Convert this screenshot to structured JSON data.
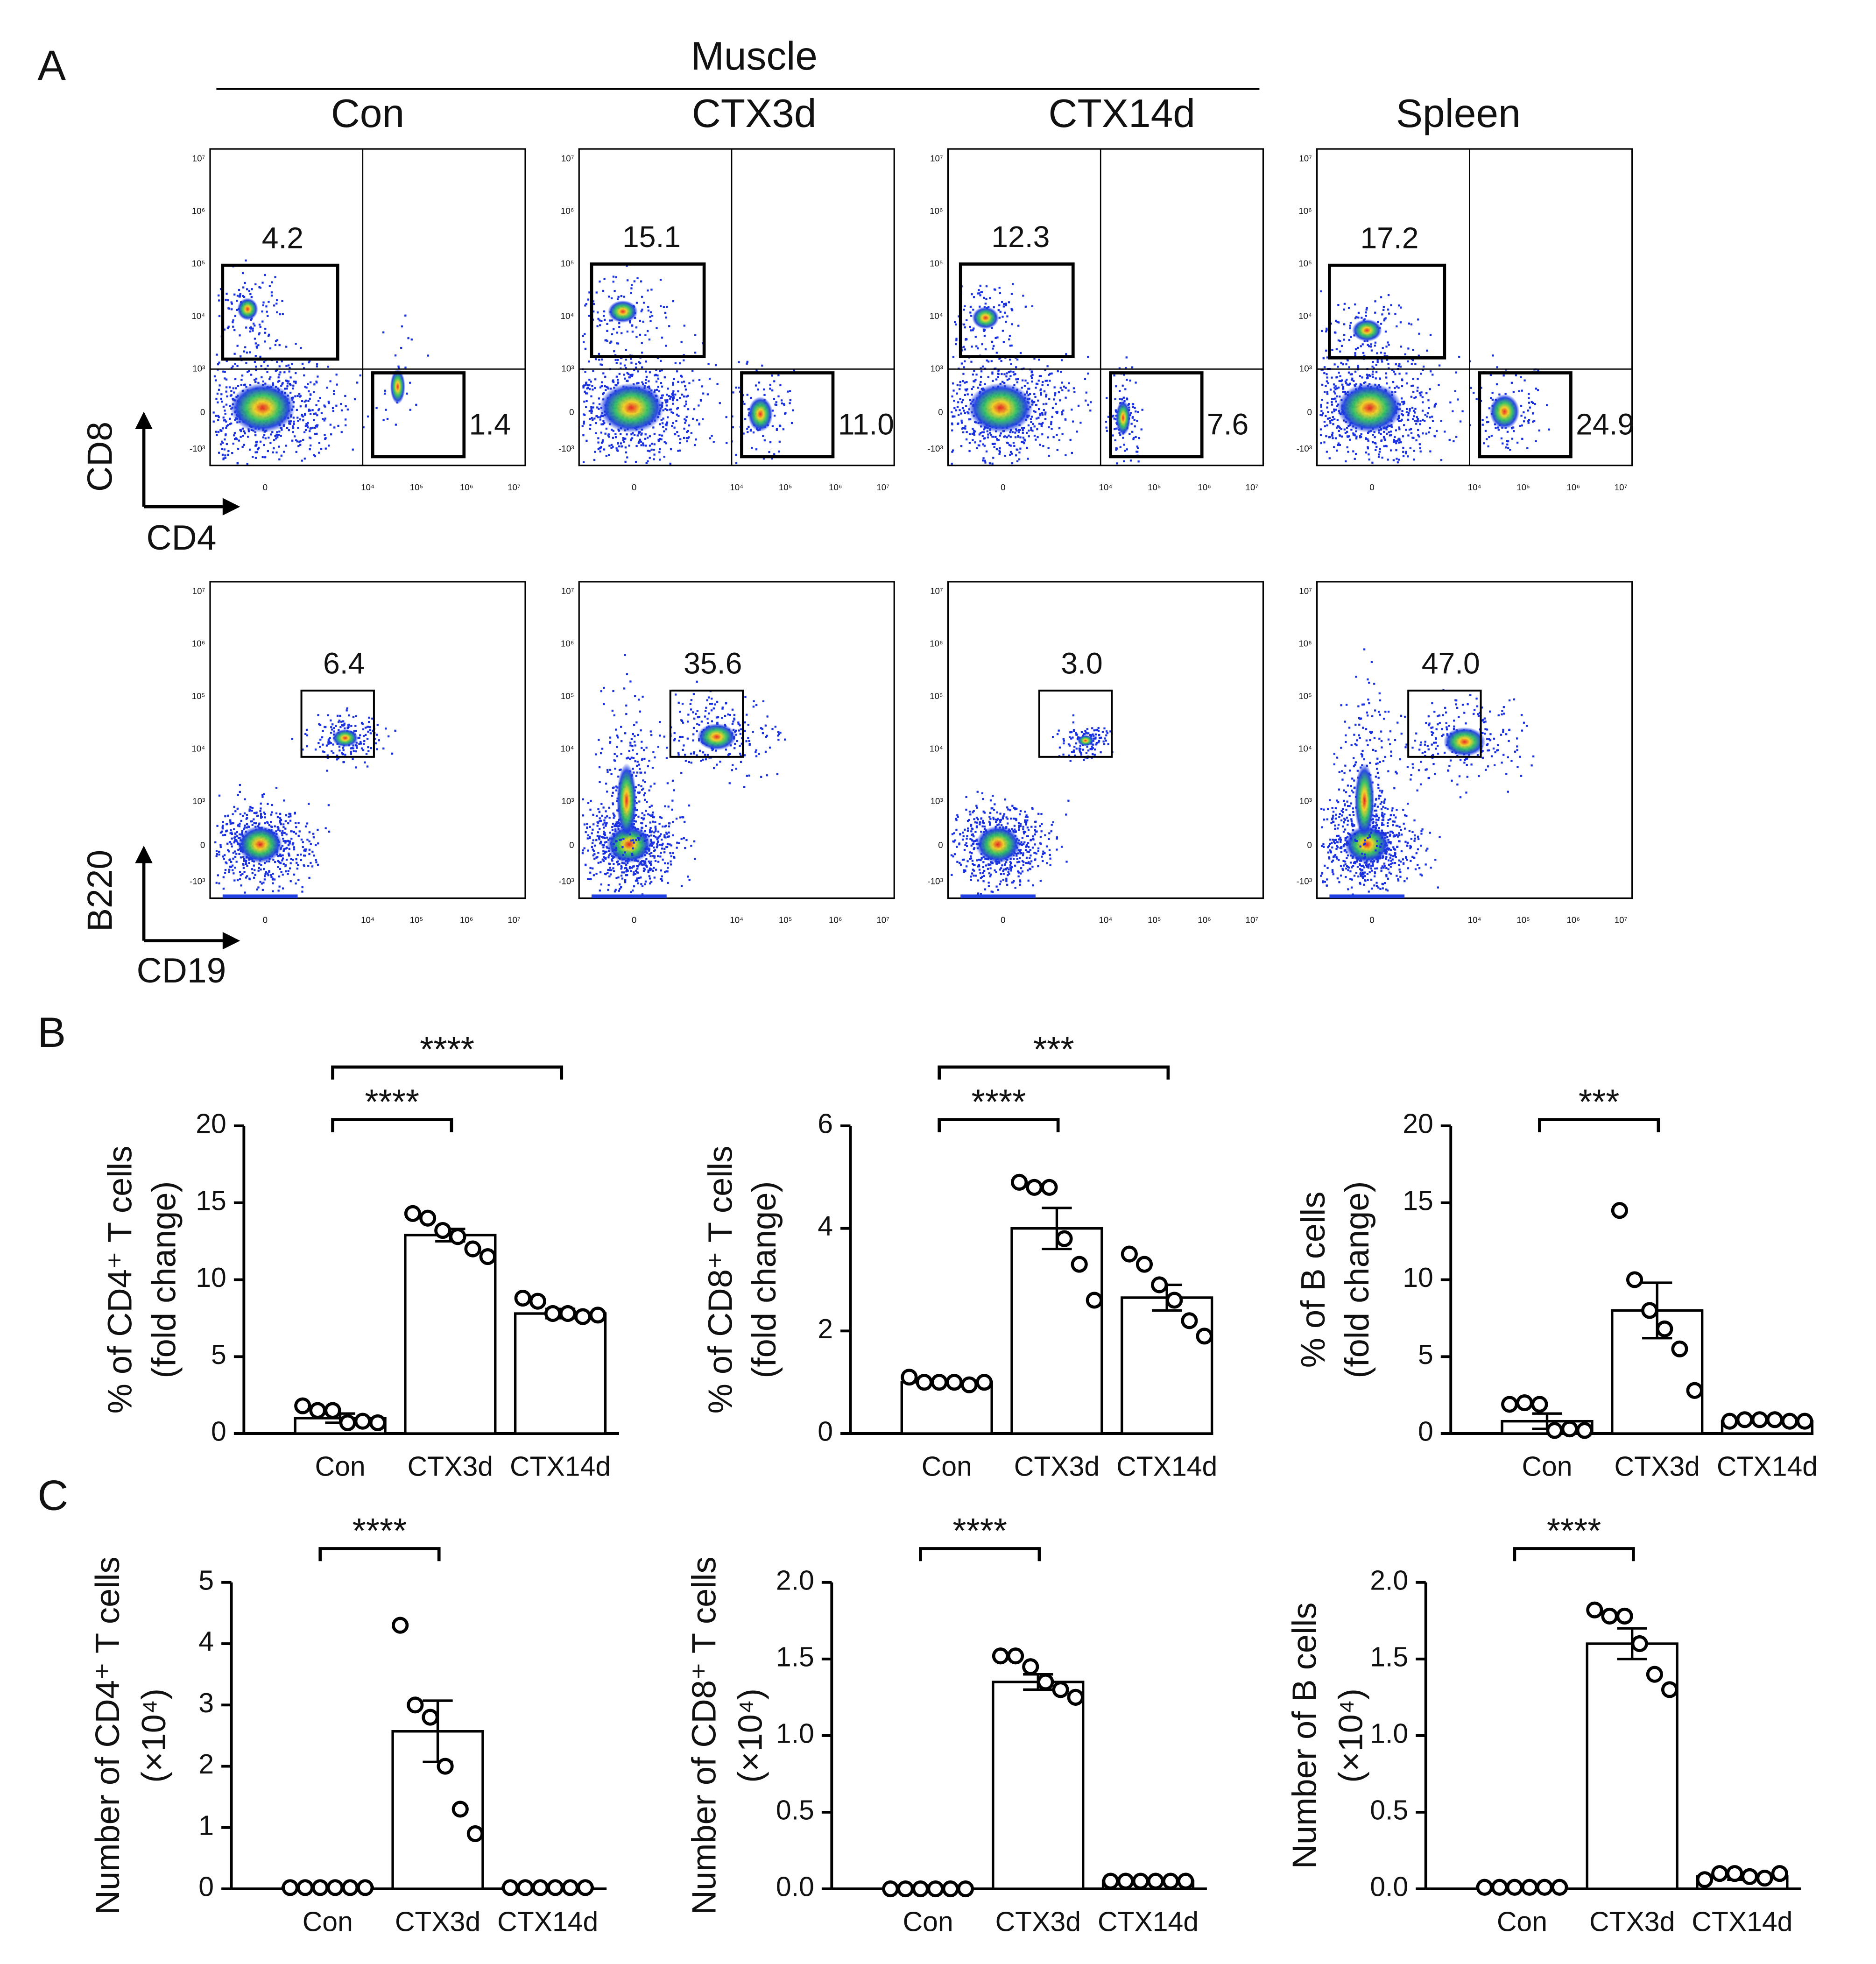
{
  "panel_labels": [
    "A",
    "B",
    "C"
  ],
  "flow": {
    "group_title": "Muscle",
    "columns": [
      "Con",
      "CTX3d",
      "CTX14d",
      "Spleen"
    ],
    "axis_ticks_y": [
      "10⁷",
      "10⁶",
      "10⁵",
      "10⁴",
      "10³",
      "0",
      "-10³"
    ],
    "axis_ticks_x": [
      "0",
      "10⁴",
      "10⁵",
      "10⁶",
      "10⁷"
    ],
    "row1": {
      "y_axis": "CD8",
      "x_axis": "CD4",
      "cd8_gates": [
        "4.2",
        "15.1",
        "12.3",
        "17.2"
      ],
      "cd4_gates": [
        "1.4",
        "11.0",
        "7.6",
        "24.9"
      ]
    },
    "row2": {
      "y_axis": "B220",
      "x_axis": "CD19",
      "gates": [
        "6.4",
        "35.6",
        "3.0",
        "47.0"
      ]
    }
  },
  "chart_data": [
    {
      "type": "bar",
      "ylabel": [
        "% of CD4⁺ T cells",
        "(fold change)"
      ],
      "categories": [
        "Con",
        "CTX3d",
        "CTX14d"
      ],
      "values": [
        1.0,
        12.9,
        7.8
      ],
      "errors": [
        0.3,
        0.4,
        0.3
      ],
      "points": [
        [
          1.8,
          1.5,
          1.5,
          0.7,
          0.8,
          0.7
        ],
        [
          14.3,
          14.0,
          13.2,
          12.8,
          12.0,
          11.5
        ],
        [
          8.8,
          8.6,
          7.8,
          7.8,
          7.6,
          7.7
        ]
      ],
      "ylim": [
        0,
        20
      ],
      "yticks": [
        0,
        5,
        10,
        15,
        20
      ],
      "annotations": [
        {
          "text": "****",
          "groups": [
            "Con",
            "CTX14d"
          ]
        },
        {
          "text": "****",
          "groups": [
            "Con",
            "CTX3d"
          ]
        }
      ]
    },
    {
      "type": "bar",
      "ylabel": [
        "% of CD8⁺ T cells",
        "(fold change)"
      ],
      "categories": [
        "Con",
        "CTX3d",
        "CTX14d"
      ],
      "values": [
        1.0,
        4.0,
        2.65
      ],
      "errors": [
        0.05,
        0.4,
        0.25
      ],
      "points": [
        [
          1.1,
          1.0,
          1.0,
          1.0,
          0.95,
          1.0
        ],
        [
          4.9,
          4.8,
          4.8,
          3.8,
          3.3,
          2.6
        ],
        [
          3.5,
          3.3,
          2.9,
          2.6,
          2.2,
          1.9
        ]
      ],
      "ylim": [
        0,
        6
      ],
      "yticks": [
        0,
        2,
        4,
        6
      ],
      "annotations": [
        {
          "text": "***",
          "groups": [
            "Con",
            "CTX14d"
          ]
        },
        {
          "text": "****",
          "groups": [
            "Con",
            "CTX3d"
          ]
        }
      ]
    },
    {
      "type": "bar",
      "ylabel": [
        "% of  B cells",
        "(fold change)"
      ],
      "categories": [
        "Con",
        "CTX3d",
        "CTX14d"
      ],
      "values": [
        0.8,
        8.0,
        0.8
      ],
      "errors": [
        0.5,
        1.8,
        0.1
      ],
      "points": [
        [
          1.9,
          2.0,
          1.9,
          0.2,
          0.3,
          0.2
        ],
        [
          14.5,
          10.0,
          8.0,
          6.8,
          5.5,
          2.8
        ],
        [
          0.8,
          0.9,
          0.9,
          0.9,
          0.8,
          0.8
        ]
      ],
      "ylim": [
        0,
        20
      ],
      "yticks": [
        0,
        5,
        10,
        15,
        20
      ],
      "annotations": [
        {
          "text": "***",
          "groups": [
            "Con",
            "CTX3d"
          ]
        }
      ]
    },
    {
      "type": "bar",
      "ylabel": [
        "Number of CD4⁺ T cells",
        "(×10⁴)"
      ],
      "categories": [
        "Con",
        "CTX3d",
        "CTX14d"
      ],
      "values": [
        0.02,
        2.57,
        0.02
      ],
      "errors": [
        0.005,
        0.5,
        0.005
      ],
      "points": [
        [
          0.02,
          0.02,
          0.02,
          0.02,
          0.02,
          0.02
        ],
        [
          4.3,
          3.0,
          2.8,
          2.0,
          1.3,
          0.9
        ],
        [
          0.02,
          0.02,
          0.02,
          0.02,
          0.02,
          0.02
        ]
      ],
      "ylim": [
        0,
        5
      ],
      "yticks": [
        0,
        1,
        2,
        3,
        4,
        5
      ],
      "annotations": [
        {
          "text": "****",
          "groups": [
            "Con",
            "CTX3d"
          ]
        }
      ]
    },
    {
      "type": "bar",
      "ylabel": [
        "Number of CD8⁺ T cells",
        "(×10⁴)"
      ],
      "categories": [
        "Con",
        "CTX3d",
        "CTX14d"
      ],
      "values": [
        0.0,
        1.35,
        0.05
      ],
      "errors": [
        0.002,
        0.05,
        0.005
      ],
      "points": [
        [
          0.0,
          0.0,
          0.0,
          0.0,
          0.0,
          0.0
        ],
        [
          1.52,
          1.52,
          1.45,
          1.35,
          1.3,
          1.25
        ],
        [
          0.05,
          0.05,
          0.05,
          0.05,
          0.05,
          0.05
        ]
      ],
      "ylim": [
        0,
        2
      ],
      "yticks": [
        {
          "value": 0,
          "label": "0.0"
        },
        {
          "value": 0.5,
          "label": "0.5"
        },
        {
          "value": 1,
          "label": "1.0"
        },
        {
          "value": 1.5,
          "label": "1.5"
        },
        {
          "value": 2,
          "label": "2.0"
        }
      ],
      "annotations": [
        {
          "text": "****",
          "groups": [
            "Con",
            "CTX3d"
          ]
        }
      ]
    },
    {
      "type": "bar",
      "ylabel": [
        "Number of B cells",
        "(×10⁴)"
      ],
      "categories": [
        "Con",
        "CTX3d",
        "CTX14d"
      ],
      "values": [
        0.01,
        1.6,
        0.08
      ],
      "errors": [
        0.002,
        0.1,
        0.02
      ],
      "points": [
        [
          0.01,
          0.01,
          0.01,
          0.01,
          0.01,
          0.01
        ],
        [
          1.82,
          1.78,
          1.78,
          1.6,
          1.4,
          1.3
        ],
        [
          0.06,
          0.1,
          0.1,
          0.08,
          0.07,
          0.1
        ]
      ],
      "ylim": [
        0,
        2
      ],
      "yticks": [
        {
          "value": 0,
          "label": "0.0"
        },
        {
          "value": 0.5,
          "label": "0.5"
        },
        {
          "value": 1,
          "label": "1.0"
        },
        {
          "value": 1.5,
          "label": "1.5"
        },
        {
          "value": 2,
          "label": "2.0"
        }
      ],
      "annotations": [
        {
          "text": "****",
          "groups": [
            "Con",
            "CTX3d"
          ]
        }
      ]
    }
  ]
}
